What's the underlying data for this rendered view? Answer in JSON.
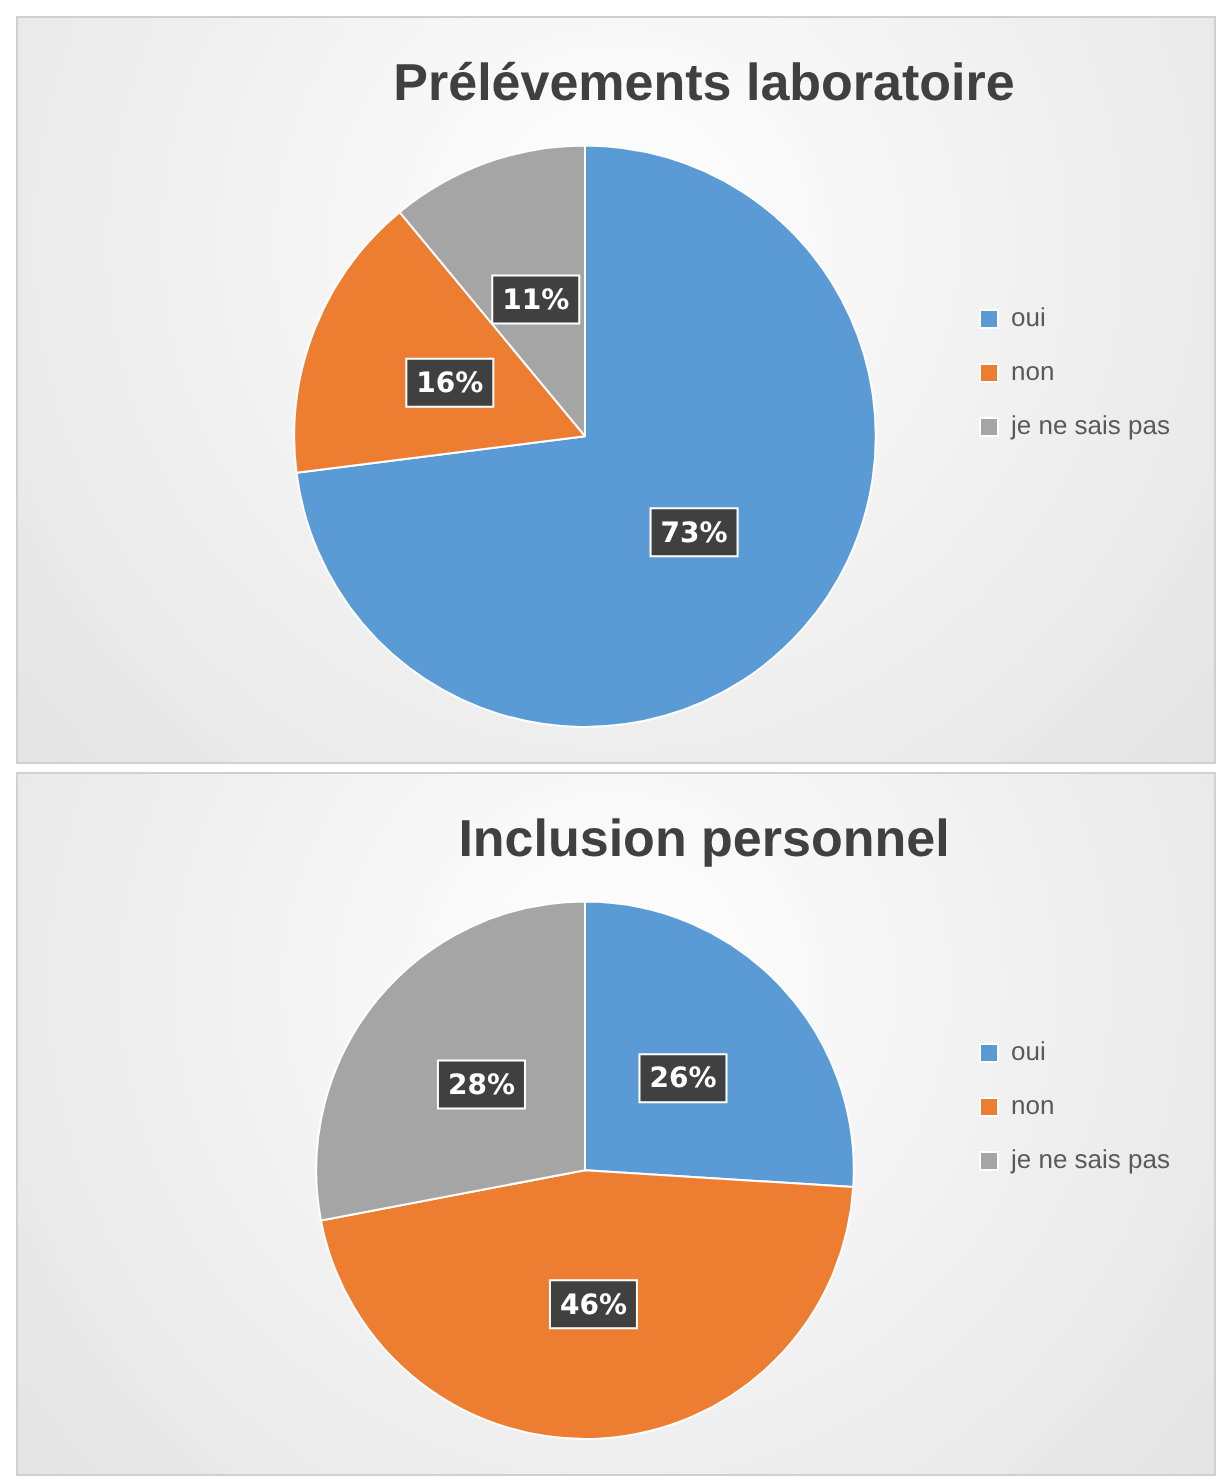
{
  "chart_data": [
    {
      "type": "pie",
      "title": "Prélévements laboratoire",
      "categories": [
        "oui",
        "non",
        "je ne sais pas"
      ],
      "values": [
        73,
        16,
        11
      ],
      "value_labels": [
        "73%",
        "16%",
        "11%"
      ],
      "colors": [
        "#5b9bd5",
        "#ed7d31",
        "#a5a5a5"
      ],
      "legend": "right"
    },
    {
      "type": "pie",
      "title": "Inclusion personnel",
      "categories": [
        "oui",
        "non",
        "je ne sais pas"
      ],
      "values": [
        26,
        46,
        28
      ],
      "value_labels": [
        "26%",
        "46%",
        "28%"
      ],
      "colors": [
        "#5b9bd5",
        "#ed7d31",
        "#a5a5a5"
      ],
      "legend": "right"
    }
  ]
}
